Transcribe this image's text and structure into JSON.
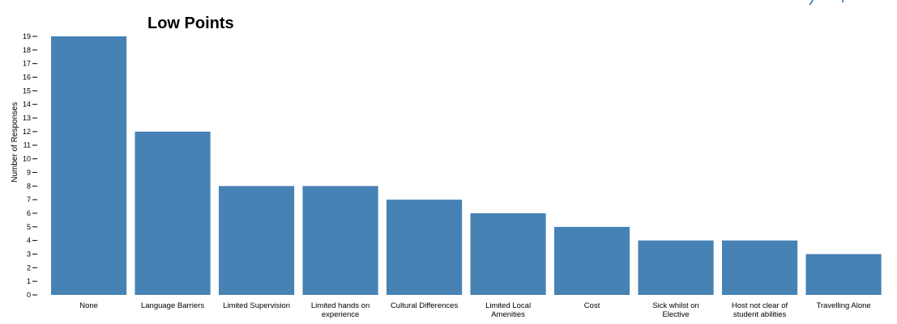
{
  "chart_data": {
    "type": "bar",
    "title": "Low Points",
    "ylabel": "Number of Responses",
    "xlabel": "",
    "ylim": [
      0,
      19
    ],
    "yticks": [
      0,
      1,
      2,
      3,
      4,
      5,
      6,
      7,
      8,
      9,
      10,
      11,
      12,
      13,
      14,
      15,
      16,
      17,
      18,
      19
    ],
    "grid": false,
    "legend": "none",
    "bar_color": "#4682b4",
    "categories": [
      [
        "None"
      ],
      [
        "Language Barriers"
      ],
      [
        "Limited Supervision"
      ],
      [
        "Limited hands on",
        "experience"
      ],
      [
        "Cultural Differences"
      ],
      [
        "Limited Local",
        "Amenities"
      ],
      [
        "Cost"
      ],
      [
        "Sick whilst on",
        "Elective"
      ],
      [
        "Host not clear of",
        "student abilities"
      ],
      [
        "Travelling Alone"
      ]
    ],
    "values": [
      19,
      12,
      8,
      8,
      7,
      6,
      5,
      4,
      4,
      3
    ]
  }
}
